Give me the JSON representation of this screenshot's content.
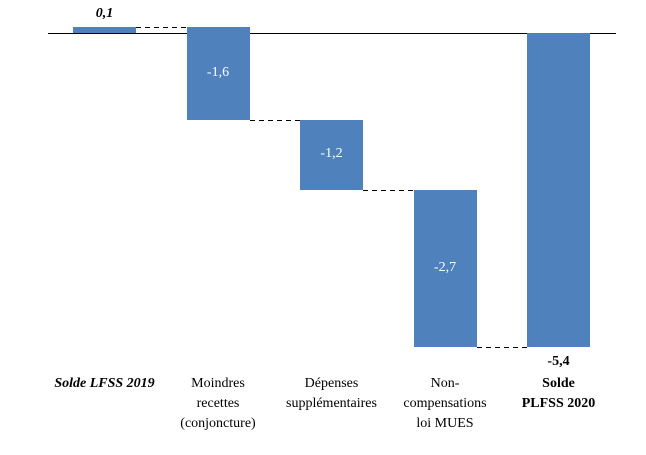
{
  "chart_data": {
    "type": "bar",
    "subtype": "waterfall",
    "title": "",
    "xlabel": "",
    "ylabel": "",
    "gridlines": false,
    "legend": false,
    "baseline": 0,
    "ylim": [
      -5.4,
      0.1
    ],
    "bar_color": "#4F81BD",
    "connector_color": "#000000",
    "connector_style": "dashed",
    "value_label_color_inside": "#FFFFFF",
    "value_label_color_outside": "#000000",
    "categories": [
      "Solde LFSS 2019",
      "Moindres\nrecettes\n(conjoncture)",
      "Dépenses\nsupplémentaires",
      "Non-\ncompensations\nloi MUES",
      "Solde\nPLFSS 2020"
    ],
    "bars": [
      {
        "category": "Solde LFSS 2019",
        "role": "start",
        "value": 0.1,
        "label": "0,1",
        "cumulative": 0.1
      },
      {
        "category": "Moindres recettes (conjoncture)",
        "role": "delta",
        "value": -1.6,
        "label": "-1,6",
        "cumulative": -1.5
      },
      {
        "category": "Dépenses supplémentaires",
        "role": "delta",
        "value": -1.2,
        "label": "-1,2",
        "cumulative": -2.7
      },
      {
        "category": "Non-compensations loi MUES",
        "role": "delta",
        "value": -2.7,
        "label": "-2,7",
        "cumulative": -5.4
      },
      {
        "category": "Solde PLFSS 2020",
        "role": "total",
        "value": -5.4,
        "label": "-5,4",
        "cumulative": -5.4
      }
    ]
  }
}
